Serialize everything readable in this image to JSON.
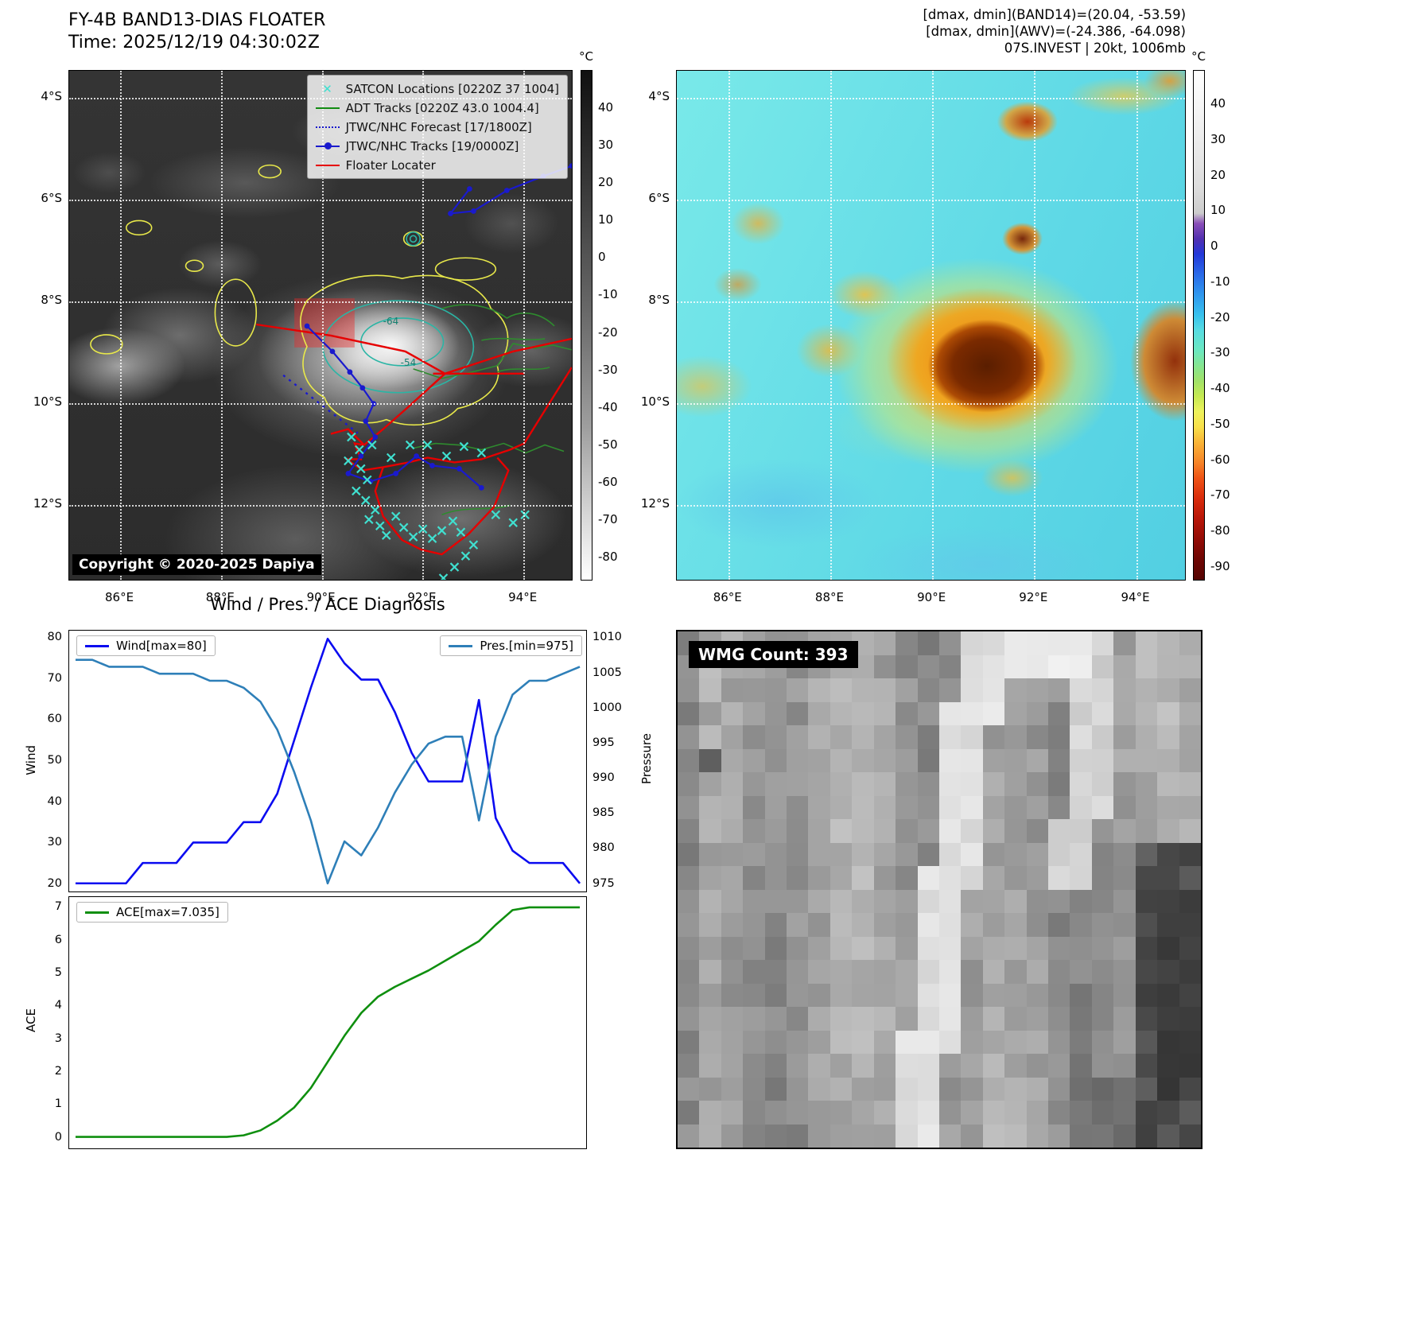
{
  "floater": {
    "title": "FY-4B BAND13-DIAS FLOATER",
    "time": "Time: 2025/12/19 04:30:02Z",
    "copyright": "Copyright © 2020-2025 Dapiya",
    "contour_labels": [
      "-64",
      "-54"
    ],
    "legend": [
      {
        "label": "SATCON Locations [0220Z 37 1004]",
        "color": "#40e0d0",
        "style": "xmarker"
      },
      {
        "label": "ADT Tracks [0220Z 43.0 1004.4]",
        "color": "#128c12",
        "style": "solid"
      },
      {
        "label": "JTWC/NHC Forecast [17/1800Z]",
        "color": "#1a1acd",
        "style": "dotted"
      },
      {
        "label": "JTWC/NHC Tracks [19/0000Z]",
        "color": "#1a1acd",
        "style": "solid-dot"
      },
      {
        "label": "Floater Locater",
        "color": "#e60000",
        "style": "solid"
      }
    ],
    "x_ticks": [
      "86°E",
      "88°E",
      "90°E",
      "92°E",
      "94°E"
    ],
    "y_ticks": [
      "4°S",
      "6°S",
      "8°S",
      "10°S",
      "12°S"
    ],
    "colorbar_unit": "°C",
    "colorbar_ticks": [
      40,
      30,
      20,
      10,
      0,
      -10,
      -20,
      -30,
      -40,
      -50,
      -60,
      -70,
      -80
    ]
  },
  "enhanced": {
    "header": [
      "[dmax, dmin](BAND14)=(20.04, -53.59)",
      "[dmax, dmin](AWV)=(-24.386, -64.098)",
      "07S.INVEST | 20kt, 1006mb"
    ],
    "x_ticks": [
      "86°E",
      "88°E",
      "90°E",
      "92°E",
      "94°E"
    ],
    "y_ticks": [
      "4°S",
      "6°S",
      "8°S",
      "10°S",
      "12°S"
    ],
    "colorbar_unit": "°C",
    "colorbar_ticks": [
      40,
      30,
      20,
      10,
      0,
      -10,
      -20,
      -30,
      -40,
      -50,
      -60,
      -70,
      -80,
      -90
    ]
  },
  "wmg": {
    "label": "WMG Count: 393"
  },
  "chart_data": [
    {
      "type": "line",
      "title": "Wind / Pres. / ACE Diagnosis",
      "ylabel": "Wind",
      "ylabel_right": "Pressure",
      "ylim": [
        18,
        82
      ],
      "ylim_right": [
        973.83,
        1011.17
      ],
      "yticks": [
        20,
        30,
        40,
        50,
        60,
        70,
        80
      ],
      "yticks_right": [
        975,
        980,
        985,
        990,
        995,
        1000,
        1005,
        1010
      ],
      "legend": [
        {
          "name": "Wind[max=80]",
          "color": "#0b0bf0"
        },
        {
          "name": "Pres.[min=975]",
          "color": "#2e7fb8"
        }
      ],
      "series": [
        {
          "name": "Wind[max=80]",
          "color": "#0b0bf0",
          "axis": "left",
          "values": [
            20,
            20,
            20,
            20,
            25,
            25,
            25,
            30,
            30,
            30,
            35,
            35,
            42,
            55,
            68,
            80,
            74,
            70,
            70,
            62,
            52,
            45,
            45,
            45,
            65,
            36,
            28,
            25,
            25,
            25,
            20
          ]
        },
        {
          "name": "Pres.[min=975]",
          "color": "#2e7fb8",
          "axis": "right",
          "values": [
            1007,
            1007,
            1006,
            1006,
            1006,
            1005,
            1005,
            1005,
            1004,
            1004,
            1003,
            1001,
            997,
            991,
            984,
            975,
            981,
            979,
            983,
            988,
            992,
            995,
            996,
            996,
            984,
            996,
            1002,
            1004,
            1004,
            1005,
            1006
          ]
        }
      ]
    },
    {
      "type": "line",
      "title": "ACE",
      "ylabel": "ACE",
      "ylim": [
        -0.35,
        7.35
      ],
      "yticks": [
        0,
        1,
        2,
        3,
        4,
        5,
        6,
        7
      ],
      "legend": [
        {
          "name": "ACE[max=7.035]",
          "color": "#0f8f0f"
        }
      ],
      "series": [
        {
          "name": "ACE[max=7.035]",
          "color": "#0f8f0f",
          "axis": "left",
          "values": [
            0,
            0,
            0,
            0,
            0,
            0,
            0,
            0,
            0,
            0,
            0.05,
            0.2,
            0.5,
            0.9,
            1.5,
            2.3,
            3.1,
            3.8,
            4.3,
            4.6,
            4.85,
            5.1,
            5.4,
            5.7,
            6.0,
            6.5,
            6.95,
            7.035,
            7.035,
            7.035,
            7.035
          ]
        }
      ]
    }
  ]
}
